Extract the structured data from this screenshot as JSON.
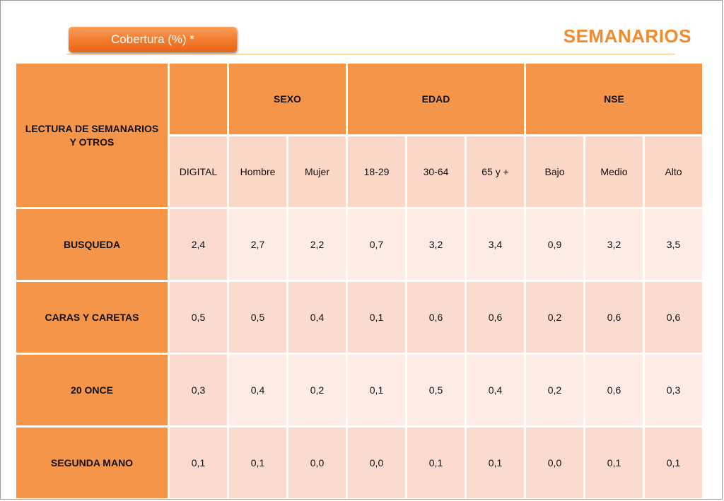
{
  "header": {
    "badge": "Cobertura (%) *",
    "title": "SEMANARIOS"
  },
  "table": {
    "corner_label": "LECTURA DE SEMANARIOS Y OTROS",
    "groups": [
      {
        "label": ""
      },
      {
        "label": "SEXO"
      },
      {
        "label": "EDAD"
      },
      {
        "label": "NSE"
      }
    ],
    "columns": [
      "DIGITAL",
      "Hombre",
      "Mujer",
      "18-29",
      "30-64",
      "65 y +",
      "Bajo",
      "Medio",
      "Alto"
    ],
    "rows": [
      {
        "label": "BUSQUEDA",
        "values": [
          "2,4",
          "2,7",
          "2,2",
          "0,7",
          "3,2",
          "3,4",
          "0,9",
          "3,2",
          "3,5"
        ]
      },
      {
        "label": "CARAS Y CARETAS",
        "values": [
          "0,5",
          "0,5",
          "0,4",
          "0,1",
          "0,6",
          "0,6",
          "0,2",
          "0,6",
          "0,6"
        ]
      },
      {
        "label": "20 ONCE",
        "values": [
          "0,3",
          "0,4",
          "0,2",
          "0,1",
          "0,5",
          "0,4",
          "0,2",
          "0,6",
          "0,3"
        ]
      },
      {
        "label": "SEGUNDA MANO",
        "values": [
          "0,1",
          "0,1",
          "0,0",
          "0,0",
          "0,1",
          "0,1",
          "0,0",
          "0,1",
          "0,1"
        ]
      }
    ]
  },
  "colors": {
    "header_orange": "#f5954a",
    "title_orange": "#f28a2e",
    "cell_dark": "#fbdad0",
    "cell_light": "#fdebe6"
  }
}
